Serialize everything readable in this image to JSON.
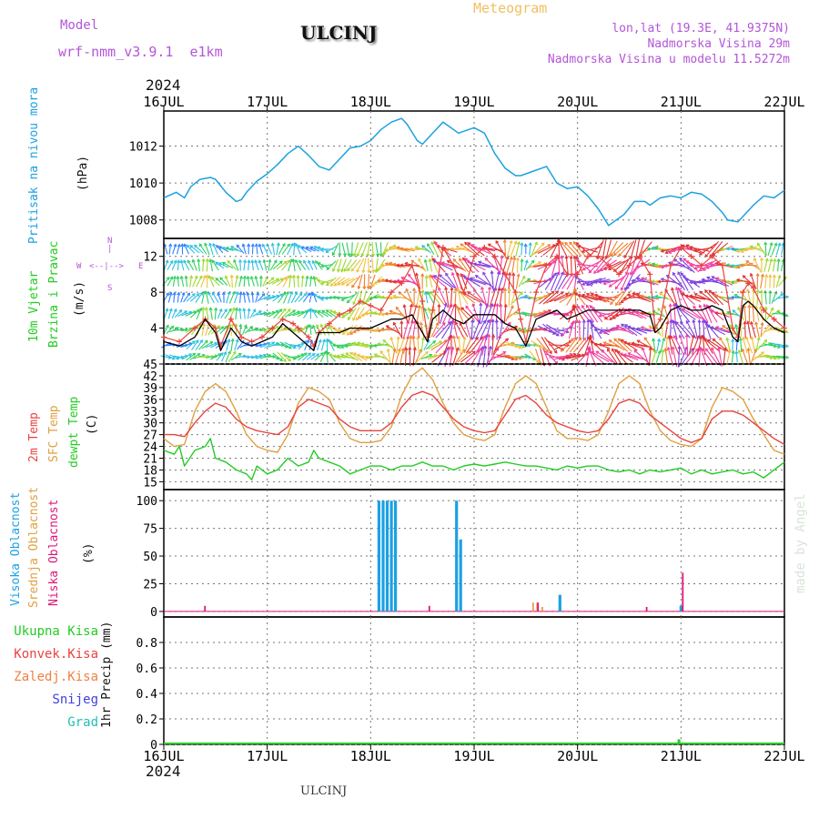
{
  "header": {
    "model_label": "Model",
    "model_name": "wrf-nmm_v3.9.1  e1km",
    "station": "ULCINJ",
    "product": "Meteogram",
    "coords": "lon,lat (19.3E, 41.9375N)",
    "elevation": "Nadmorska Visina 29m",
    "model_elevation": "Nadmorska Visina u modelu 11.5272m",
    "year_top": "2024",
    "year_bottom": "2024",
    "footer_station": "ULCINJ",
    "credit": "made by Angel"
  },
  "colors": {
    "pressure": "#1ba1e2",
    "t2m": "#e8433e",
    "sfc": "#e0a040",
    "dewpt": "#22cc22",
    "high_cloud": "#1ba1e2",
    "mid_cloud": "#e0a040",
    "low_cloud": "#e0157a",
    "wind_speed": "#000000",
    "gust": "#e8433e",
    "model": "#b455d8",
    "title_product": "#f0c060"
  },
  "panel_labels": {
    "pressure": [
      "Pritisak na nivou mora"
    ],
    "pressure_unit": "(hPa)",
    "wind": [
      "10m Vjetar",
      "Brzina i Pravac"
    ],
    "wind_unit": "(m/s)",
    "compass_n": "N",
    "compass_s": "S",
    "compass_w": "W",
    "compass_e": "E",
    "temp": [
      "2m Temp",
      "SFC Temp",
      "dewpt Temp"
    ],
    "temp_unit": "(C)",
    "cloud": [
      "Visoka Oblacnost",
      "Srednja Oblacnost",
      "Niska Oblacnost"
    ],
    "cloud_unit": "(%)",
    "precip_legend": [
      "Ukupna Kisa",
      "Konvek.Kisa",
      "Zaledj.Kisa",
      "Snijeg",
      "Grad"
    ],
    "precip_unit": "1hr Precip (mm)"
  },
  "chart_data": [
    {
      "type": "line",
      "panel": "pressure",
      "x_labels": [
        "16JUL",
        "17JUL",
        "18JUL",
        "19JUL",
        "20JUL",
        "21JUL",
        "22JUL"
      ],
      "ylabel": "(hPa)",
      "yticks": [
        1008,
        1010,
        1012
      ],
      "ylim": [
        1007.0,
        1013.9
      ],
      "series": [
        {
          "name": "Pritisak na nivou mora",
          "x": [
            0,
            0.12,
            0.2,
            0.26,
            0.35,
            0.45,
            0.5,
            0.6,
            0.7,
            0.75,
            0.8,
            0.9,
            1.0,
            1.1,
            1.2,
            1.3,
            1.4,
            1.5,
            1.6,
            1.7,
            1.8,
            1.9,
            2.0,
            2.1,
            2.2,
            2.3,
            2.35,
            2.45,
            2.5,
            2.6,
            2.7,
            2.75,
            2.85,
            2.95,
            3.0,
            3.1,
            3.2,
            3.3,
            3.4,
            3.45,
            3.55,
            3.7,
            3.8,
            3.9,
            4.0,
            4.1,
            4.2,
            4.3,
            4.45,
            4.55,
            4.65,
            4.7,
            4.8,
            4.9,
            5.0,
            5.1,
            5.2,
            5.3,
            5.4,
            5.45,
            5.55,
            5.6,
            5.7,
            5.8,
            5.9,
            6.0
          ],
          "y": [
            1009.2,
            1009.5,
            1009.2,
            1009.8,
            1010.2,
            1010.3,
            1010.2,
            1009.5,
            1009.0,
            1009.1,
            1009.5,
            1010.1,
            1010.5,
            1011.0,
            1011.6,
            1012.0,
            1011.5,
            1010.9,
            1010.7,
            1011.3,
            1011.9,
            1012.0,
            1012.3,
            1012.9,
            1013.3,
            1013.5,
            1013.2,
            1012.3,
            1012.1,
            1012.7,
            1013.3,
            1013.1,
            1012.7,
            1012.9,
            1013.0,
            1012.7,
            1011.6,
            1010.8,
            1010.4,
            1010.4,
            1010.6,
            1010.9,
            1010.0,
            1009.7,
            1009.8,
            1009.3,
            1008.6,
            1007.7,
            1008.3,
            1009.0,
            1009.0,
            1008.8,
            1009.2,
            1009.3,
            1009.2,
            1009.5,
            1009.4,
            1009.0,
            1008.4,
            1008.0,
            1007.9,
            1008.2,
            1008.8,
            1009.3,
            1009.2,
            1009.6
          ]
        }
      ]
    },
    {
      "type": "line",
      "panel": "wind",
      "x_labels": [
        "16JUL",
        "17JUL",
        "18JUL",
        "19JUL",
        "20JUL",
        "21JUL",
        "22JUL"
      ],
      "ylabel": "(m/s)",
      "yticks": [
        4,
        8,
        12
      ],
      "ylim": [
        0,
        14
      ],
      "series": [
        {
          "name": "wind speed",
          "x": [
            0,
            0.15,
            0.3,
            0.4,
            0.5,
            0.55,
            0.65,
            0.75,
            0.85,
            0.95,
            1.05,
            1.15,
            1.25,
            1.3,
            1.4,
            1.45,
            1.5,
            1.6,
            1.7,
            1.8,
            1.9,
            2.0,
            2.1,
            2.2,
            2.3,
            2.4,
            2.5,
            2.55,
            2.6,
            2.7,
            2.8,
            2.9,
            3.0,
            3.1,
            3.2,
            3.3,
            3.4,
            3.45,
            3.5,
            3.6,
            3.7,
            3.8,
            3.9,
            4.0,
            4.1,
            4.2,
            4.3,
            4.4,
            4.5,
            4.6,
            4.7,
            4.75,
            4.8,
            4.9,
            5.0,
            5.1,
            5.2,
            5.3,
            5.4,
            5.5,
            5.55,
            5.6,
            5.65,
            5.7,
            5.8,
            5.9,
            6.0
          ],
          "y": [
            2.5,
            2.0,
            3.0,
            5.0,
            3.5,
            1.5,
            4.0,
            2.5,
            2.0,
            2.5,
            3.0,
            4.5,
            3.5,
            3.0,
            2.0,
            1.5,
            3.5,
            3.5,
            3.5,
            4.0,
            4.0,
            4.0,
            4.5,
            5.0,
            5.0,
            5.5,
            3.5,
            2.5,
            5.0,
            6.0,
            5.0,
            4.5,
            5.5,
            5.5,
            5.5,
            4.5,
            4.0,
            3.0,
            2.0,
            5.0,
            5.5,
            6.0,
            5.0,
            5.5,
            6.0,
            6.0,
            6.0,
            6.0,
            6.0,
            6.0,
            5.5,
            3.5,
            4.0,
            6.0,
            6.5,
            6.0,
            6.0,
            6.5,
            6.0,
            3.0,
            2.5,
            6.5,
            7.0,
            6.5,
            5.0,
            4.0,
            3.5
          ]
        },
        {
          "name": "gust",
          "x": [
            0,
            0.15,
            0.3,
            0.4,
            0.5,
            0.55,
            0.65,
            0.75,
            0.85,
            0.95,
            1.05,
            1.15,
            1.25,
            1.3,
            1.4,
            1.45,
            1.5,
            1.6,
            1.7,
            1.8,
            1.9,
            2.0,
            2.1,
            2.2,
            2.3,
            2.4,
            2.5,
            2.55,
            2.6,
            2.7,
            2.8,
            2.9,
            3.0,
            3.1,
            3.2,
            3.3,
            3.4,
            3.45,
            3.5,
            3.6,
            3.7,
            3.8,
            3.9,
            4.0,
            4.1,
            4.2,
            4.3,
            4.4,
            4.5,
            4.6,
            4.7,
            4.75,
            4.8,
            4.9,
            5.0,
            5.1,
            5.2,
            5.3,
            5.4,
            5.5,
            5.55,
            5.6,
            5.65,
            5.7,
            5.8,
            5.9,
            6.0
          ],
          "y": [
            3.0,
            2.5,
            4.0,
            5.0,
            4.0,
            2.0,
            5.0,
            3.0,
            2.5,
            3.0,
            4.0,
            5.0,
            4.5,
            4.0,
            3.0,
            2.0,
            3.5,
            4.5,
            5.5,
            6.0,
            7.0,
            6.5,
            6.0,
            8.0,
            9.0,
            11.0,
            7.0,
            3.0,
            6.0,
            13.0,
            11.0,
            8.0,
            12.0,
            13.0,
            12.0,
            10.0,
            8.0,
            5.0,
            2.5,
            8.0,
            11.0,
            12.0,
            10.0,
            10.0,
            12.0,
            12.0,
            11.0,
            10.0,
            11.0,
            12.0,
            10.0,
            4.0,
            5.0,
            11.0,
            13.0,
            12.0,
            11.0,
            12.0,
            11.0,
            4.0,
            3.0,
            8.0,
            9.0,
            8.5,
            6.0,
            5.0,
            4.0
          ]
        }
      ]
    },
    {
      "type": "line",
      "panel": "temperature",
      "x_labels": [
        "16JUL",
        "17JUL",
        "18JUL",
        "19JUL",
        "20JUL",
        "21JUL",
        "22JUL"
      ],
      "ylabel": "(C)",
      "yticks": [
        15,
        18,
        21,
        24,
        27,
        30,
        33,
        36,
        39,
        42,
        45
      ],
      "ylim": [
        13,
        45
      ],
      "series": [
        {
          "name": "2m Temp",
          "x": [
            0,
            0.1,
            0.2,
            0.3,
            0.4,
            0.5,
            0.6,
            0.7,
            0.8,
            0.9,
            1.0,
            1.1,
            1.2,
            1.3,
            1.4,
            1.5,
            1.6,
            1.7,
            1.8,
            1.9,
            2.0,
            2.1,
            2.2,
            2.3,
            2.4,
            2.5,
            2.6,
            2.7,
            2.8,
            2.9,
            3.0,
            3.1,
            3.2,
            3.3,
            3.4,
            3.5,
            3.6,
            3.7,
            3.8,
            3.9,
            4.0,
            4.1,
            4.2,
            4.3,
            4.4,
            4.5,
            4.6,
            4.7,
            4.8,
            4.9,
            5.0,
            5.1,
            5.2,
            5.3,
            5.4,
            5.5,
            5.6,
            5.7,
            5.8,
            5.9,
            6.0
          ],
          "y": [
            27,
            27,
            26.5,
            30,
            33,
            35,
            34,
            31,
            29,
            28,
            27.5,
            27,
            29,
            34,
            36,
            35,
            34,
            31,
            29,
            28,
            28,
            28,
            30,
            34,
            37,
            38,
            37,
            34,
            31,
            29,
            28,
            27.5,
            28,
            32,
            36,
            37,
            35,
            32,
            30,
            29,
            28,
            27.5,
            28,
            31,
            35,
            36,
            35,
            32,
            30,
            28,
            26,
            25,
            26,
            31,
            33,
            33,
            32,
            30,
            28,
            26,
            24.5
          ]
        },
        {
          "name": "SFC Temp",
          "x": [
            0,
            0.1,
            0.2,
            0.3,
            0.4,
            0.5,
            0.6,
            0.7,
            0.8,
            0.9,
            1.0,
            1.1,
            1.2,
            1.3,
            1.4,
            1.5,
            1.6,
            1.7,
            1.8,
            1.9,
            2.0,
            2.1,
            2.2,
            2.3,
            2.4,
            2.5,
            2.6,
            2.7,
            2.8,
            2.9,
            3.0,
            3.1,
            3.2,
            3.3,
            3.4,
            3.5,
            3.6,
            3.7,
            3.8,
            3.9,
            4.0,
            4.1,
            4.2,
            4.3,
            4.4,
            4.5,
            4.6,
            4.7,
            4.8,
            4.9,
            5.0,
            5.1,
            5.2,
            5.3,
            5.4,
            5.5,
            5.6,
            5.7,
            5.8,
            5.9,
            6.0
          ],
          "y": [
            26,
            24,
            24.5,
            33,
            38,
            40,
            38,
            33,
            27,
            24,
            23,
            22.5,
            27,
            35,
            39,
            38,
            36,
            30,
            26,
            25,
            25,
            25.5,
            29,
            37,
            42,
            44,
            41,
            35,
            30,
            27,
            26,
            25.5,
            27,
            34,
            40,
            42,
            40,
            34,
            28,
            26,
            26,
            25.5,
            27,
            33,
            40,
            42,
            40,
            33,
            28,
            25.5,
            24.5,
            24,
            26,
            34,
            39,
            38,
            36,
            31,
            27,
            23,
            22
          ]
        },
        {
          "name": "dewpt Temp",
          "x": [
            0,
            0.1,
            0.15,
            0.2,
            0.3,
            0.4,
            0.45,
            0.5,
            0.6,
            0.7,
            0.8,
            0.85,
            0.9,
            1.0,
            1.1,
            1.2,
            1.3,
            1.4,
            1.45,
            1.5,
            1.6,
            1.7,
            1.8,
            1.9,
            2.0,
            2.1,
            2.2,
            2.3,
            2.4,
            2.5,
            2.6,
            2.7,
            2.8,
            2.9,
            3.0,
            3.1,
            3.2,
            3.3,
            3.4,
            3.5,
            3.6,
            3.7,
            3.8,
            3.9,
            4.0,
            4.1,
            4.2,
            4.3,
            4.4,
            4.5,
            4.6,
            4.7,
            4.8,
            4.9,
            5.0,
            5.1,
            5.2,
            5.3,
            5.4,
            5.5,
            5.6,
            5.7,
            5.8,
            5.9,
            6.0
          ],
          "y": [
            23,
            22,
            24,
            19,
            23,
            24,
            26,
            21,
            20,
            18,
            17,
            15.5,
            19,
            17,
            18,
            21,
            19,
            20,
            23,
            21,
            20,
            19,
            17,
            18,
            19,
            19,
            18,
            19,
            19,
            20,
            19,
            19,
            18,
            19,
            19.5,
            19,
            19.5,
            20,
            19.5,
            19,
            19,
            18.5,
            18,
            19,
            18.5,
            19,
            19,
            18,
            17.5,
            18,
            17,
            18,
            17.5,
            18,
            18.5,
            17,
            18,
            17,
            17.5,
            18,
            17,
            17.5,
            16,
            18,
            20
          ]
        }
      ]
    },
    {
      "type": "bar",
      "panel": "cloud",
      "x_labels": [
        "16JUL",
        "17JUL",
        "18JUL",
        "19JUL",
        "20JUL",
        "21JUL",
        "22JUL"
      ],
      "ylabel": "(%)",
      "yticks": [
        0,
        25,
        50,
        75,
        100
      ],
      "ylim": [
        -5,
        110
      ],
      "series": [
        {
          "name": "Visoka Oblacnost",
          "x": [
            2.08,
            2.12,
            2.16,
            2.2,
            2.24,
            2.83,
            2.87,
            3.83,
            5.0
          ],
          "values": [
            100,
            100,
            100,
            100,
            100,
            100,
            65,
            15,
            5
          ]
        },
        {
          "name": "Srednja Oblacnost",
          "x": [
            3.57,
            3.61,
            3.66
          ],
          "values": [
            8,
            8,
            4
          ]
        },
        {
          "name": "Niska Oblacnost",
          "x": [
            0.38,
            2.55,
            3.6,
            4.65,
            5.0
          ],
          "values": [
            5,
            5,
            8,
            4,
            35
          ]
        }
      ]
    },
    {
      "type": "bar",
      "panel": "precipitation",
      "x_labels": [
        "16JUL",
        "17JUL",
        "18JUL",
        "19JUL",
        "20JUL",
        "21JUL",
        "22JUL"
      ],
      "ylabel": "1hr Precip (mm)",
      "yticks": [
        0,
        0.2,
        0.4,
        0.6,
        0.8
      ],
      "ylim": [
        0,
        1.0
      ],
      "series": [
        {
          "name": "Ukupna Kisa",
          "x": [
            4.98
          ],
          "values": [
            0.04
          ]
        }
      ]
    }
  ]
}
